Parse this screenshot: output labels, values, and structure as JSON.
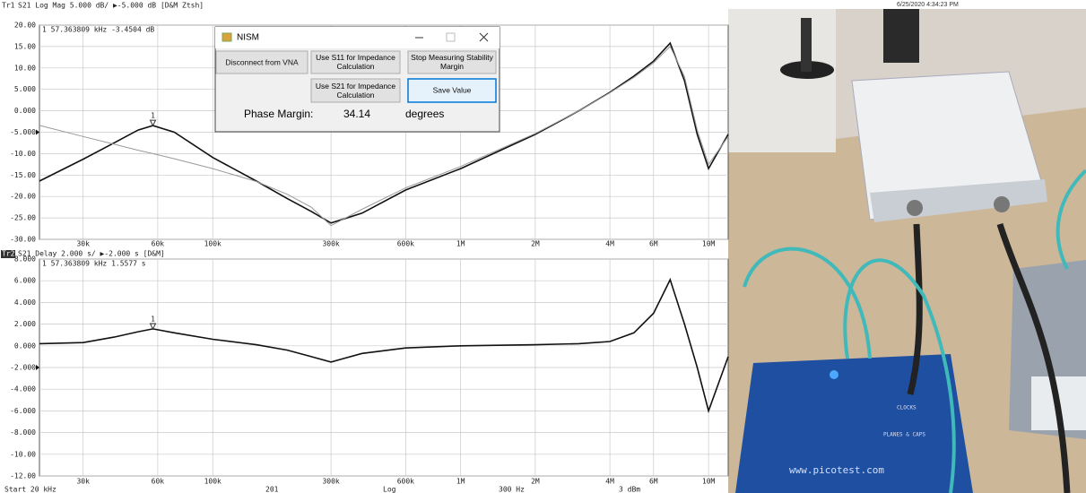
{
  "timestamp": "6/25/2020 4:34:23 PM",
  "status_bar": [
    "Start 20 kHz",
    "201",
    "Log",
    "300 Hz",
    "3 dBm"
  ],
  "dialog": {
    "title": "NISM",
    "buttons": [
      "Disconnect from VNA",
      "Use S11 for Impedance Calculation",
      "Stop Measuring Stability Margin",
      "Use S21 for Impedance Calculation",
      "Save Value"
    ],
    "phase_margin_label": "Phase Margin:",
    "phase_margin_value": "34.14",
    "phase_margin_unit": "degrees"
  },
  "photo_texts": [
    "www.picotest.com",
    "CLOCKS",
    "PLANES & CAPS"
  ],
  "chart_data": [
    {
      "type": "line",
      "trace": "Tr1",
      "header": "S21 Log Mag 5.000 dB/ ▶-5.000 dB [D&M Ztsh]",
      "marker_readout": "1 57.363809 kHz -3.4504 dB",
      "marker": {
        "label": "1",
        "x": 57363.809,
        "value": -3.4504
      },
      "reference_level": -5,
      "log_x": true,
      "grid": true,
      "x": [
        20000,
        30000,
        40000,
        50000,
        57363.809,
        70000,
        100000,
        150000,
        200000,
        250000,
        300000,
        400000,
        600000,
        1000000,
        2000000,
        3000000,
        4000000,
        5000000,
        6000000,
        7000000,
        8000000,
        9000000,
        10000000,
        12000000
      ],
      "series": [
        {
          "color": "#111111",
          "values": [
            -16.4,
            -11.3,
            -7.5,
            -4.5,
            -3.45,
            -5.0,
            -10.9,
            -16.4,
            -20.5,
            -23.5,
            -26.2,
            -23.9,
            -18.5,
            -13.5,
            -5.5,
            0.0,
            4.3,
            8.1,
            11.6,
            15.8,
            7.0,
            -5.5,
            -13.5,
            -5.5
          ]
        },
        {
          "color": "#9a9a9a",
          "values": [
            -3.4,
            -6.0,
            -7.8,
            -9.2,
            -10.0,
            -11.2,
            -13.5,
            -16.5,
            -19.5,
            -22.5,
            -26.8,
            -23.0,
            -18.0,
            -13.0,
            -5.3,
            0.0,
            4.2,
            7.8,
            11.2,
            15.0,
            8.0,
            -4.5,
            -12.5,
            -6.0
          ]
        }
      ],
      "xlim": [
        20000,
        12000000
      ],
      "xticks": [
        {
          "value": 30000,
          "label": "30k"
        },
        {
          "value": 60000,
          "label": "60k"
        },
        {
          "value": 100000,
          "label": "100k"
        },
        {
          "value": 300000,
          "label": "300k"
        },
        {
          "value": 600000,
          "label": "600k"
        },
        {
          "value": 1000000,
          "label": "1M"
        },
        {
          "value": 2000000,
          "label": "2M"
        },
        {
          "value": 4000000,
          "label": "4M"
        },
        {
          "value": 6000000,
          "label": "6M"
        },
        {
          "value": 10000000,
          "label": "10M"
        }
      ],
      "ylim": [
        -30,
        20
      ],
      "yticks": [
        {
          "value": 20,
          "label": "20.00"
        },
        {
          "value": 15,
          "label": "15.00"
        },
        {
          "value": 10,
          "label": "10.00"
        },
        {
          "value": 5,
          "label": "5.000"
        },
        {
          "value": 0,
          "label": "0.000"
        },
        {
          "value": -5,
          "label": "-5.000"
        },
        {
          "value": -10,
          "label": "-10.00"
        },
        {
          "value": -15,
          "label": "-15.00"
        },
        {
          "value": -20,
          "label": "-20.00"
        },
        {
          "value": -25,
          "label": "-25.00"
        },
        {
          "value": -30,
          "label": "-30.00"
        }
      ]
    },
    {
      "type": "line",
      "trace": "Tr2",
      "header": "S21 Delay 2.000 s/ ▶-2.000 s [D&M]",
      "marker_readout": "1 57.363809 kHz 1.5577 s",
      "marker": {
        "label": "1",
        "x": 57363.809,
        "value": 1.5577
      },
      "reference_level": -2,
      "log_x": true,
      "grid": true,
      "x": [
        20000,
        30000,
        40000,
        50000,
        57363.809,
        70000,
        100000,
        150000,
        200000,
        250000,
        300000,
        400000,
        600000,
        1000000,
        2000000,
        3000000,
        4000000,
        5000000,
        6000000,
        7000000,
        8000000,
        9000000,
        10000000,
        12000000
      ],
      "series": [
        {
          "color": "#111111",
          "values": [
            0.2,
            0.3,
            0.8,
            1.3,
            1.56,
            1.2,
            0.6,
            0.1,
            -0.4,
            -1.0,
            -1.5,
            -0.7,
            -0.2,
            0.0,
            0.1,
            0.2,
            0.4,
            1.2,
            3.0,
            6.1,
            2.0,
            -2.0,
            -6.0,
            -1.0
          ]
        }
      ],
      "xlim": [
        20000,
        12000000
      ],
      "xticks": [
        {
          "value": 30000,
          "label": "30k"
        },
        {
          "value": 60000,
          "label": "60k"
        },
        {
          "value": 100000,
          "label": "100k"
        },
        {
          "value": 300000,
          "label": "300k"
        },
        {
          "value": 600000,
          "label": "600k"
        },
        {
          "value": 1000000,
          "label": "1M"
        },
        {
          "value": 2000000,
          "label": "2M"
        },
        {
          "value": 4000000,
          "label": "4M"
        },
        {
          "value": 6000000,
          "label": "6M"
        },
        {
          "value": 10000000,
          "label": "10M"
        }
      ],
      "ylim": [
        -12,
        8
      ],
      "yticks": [
        {
          "value": 8,
          "label": "8.000"
        },
        {
          "value": 6,
          "label": "6.000"
        },
        {
          "value": 4,
          "label": "4.000"
        },
        {
          "value": 2,
          "label": "2.000"
        },
        {
          "value": 0,
          "label": "0.000"
        },
        {
          "value": -2,
          "label": "-2.000"
        },
        {
          "value": -4,
          "label": "-4.000"
        },
        {
          "value": -6,
          "label": "-6.000"
        },
        {
          "value": -8,
          "label": "-8.000"
        },
        {
          "value": -10,
          "label": "-10.00"
        },
        {
          "value": -12,
          "label": "-12.00"
        }
      ]
    }
  ]
}
